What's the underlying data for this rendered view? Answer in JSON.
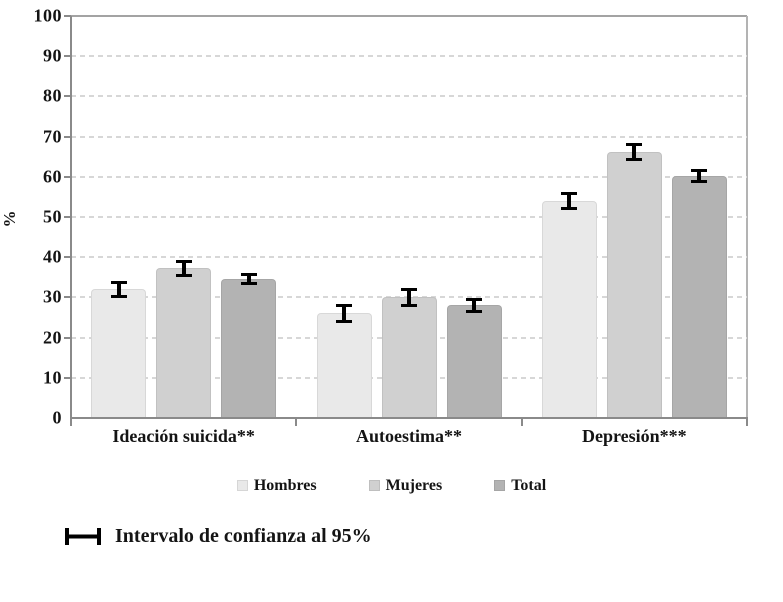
{
  "colors": {
    "background": "#ffffff",
    "grid": "#d7d7d7",
    "axis": "#8a8a8a",
    "plot_border": "#b3b3b3",
    "error_bar": "#000000",
    "text": "#141414"
  },
  "chart_data": {
    "type": "bar",
    "title": "",
    "xlabel": "",
    "ylabel": "%",
    "ylim": [
      0,
      100
    ],
    "ytick_step": 10,
    "grid": "horizontal-dashed",
    "legend_position": "bottom",
    "categories": [
      "Ideación suicida**",
      "Autoestima**",
      "Depresión***"
    ],
    "series": [
      {
        "name": "Hombres",
        "color": "#e9e9e9",
        "values": [
          32,
          26,
          54
        ],
        "ci95": [
          2.2,
          2.4,
          2.2
        ]
      },
      {
        "name": "Mujeres",
        "color": "#d0d0d0",
        "values": [
          37.2,
          30,
          66.2
        ],
        "ci95": [
          2.2,
          2.3,
          2.2
        ]
      },
      {
        "name": "Total",
        "color": "#b3b3b3",
        "values": [
          34.7,
          28,
          60.2
        ],
        "ci95": [
          1.5,
          1.9,
          1.8
        ]
      }
    ],
    "error_bars": "95% confidence interval",
    "note": {
      "icon": "error-bar-icon",
      "text": "Intervalo de confianza al 95%"
    }
  }
}
